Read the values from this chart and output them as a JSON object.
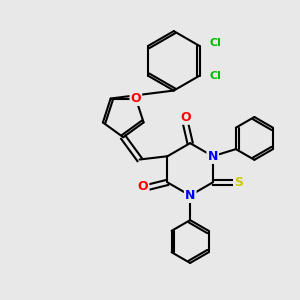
{
  "background_color": "#e8e8e8",
  "bond_color": "#000000",
  "atom_colors": {
    "O": "#ff0000",
    "N": "#0000ff",
    "S": "#cccc00",
    "Cl": "#00bb00",
    "C": "#000000"
  },
  "figsize": [
    3.0,
    3.0
  ],
  "dpi": 100
}
